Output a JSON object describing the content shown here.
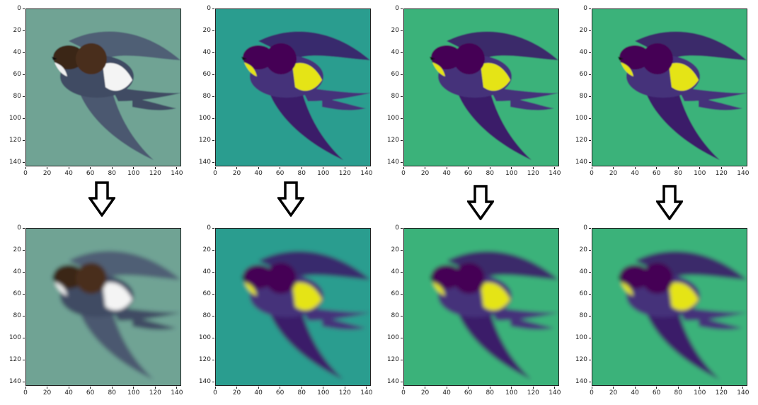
{
  "figure": {
    "x_ticks": [
      "0",
      "20",
      "40",
      "60",
      "80",
      "100",
      "120",
      "140"
    ],
    "y_ticks": [
      "0",
      "20",
      "40",
      "60",
      "80",
      "100",
      "120",
      "140"
    ],
    "top_row": [
      {
        "id": "rgb-original",
        "colormap": "rgb"
      },
      {
        "id": "channel-1-original",
        "colormap": "viridis"
      },
      {
        "id": "channel-2-original",
        "colormap": "viridis"
      },
      {
        "id": "channel-3-original",
        "colormap": "viridis"
      }
    ],
    "bottom_row": [
      {
        "id": "rgb-reconstructed",
        "colormap": "rgb"
      },
      {
        "id": "channel-1-reconstructed",
        "colormap": "viridis"
      },
      {
        "id": "channel-2-reconstructed",
        "colormap": "viridis"
      },
      {
        "id": "channel-3-reconstructed",
        "colormap": "viridis"
      }
    ],
    "arrow_icon": "down-arrow-icon",
    "colors": {
      "rgb_bg": "#6fa394",
      "viridis_bg": "#2a9d8f",
      "viridis_bg_light": "#3bb27a",
      "viridis_dark": "#3b1d69",
      "viridis_darkest": "#440154",
      "viridis_yellow": "#e5e419"
    }
  }
}
